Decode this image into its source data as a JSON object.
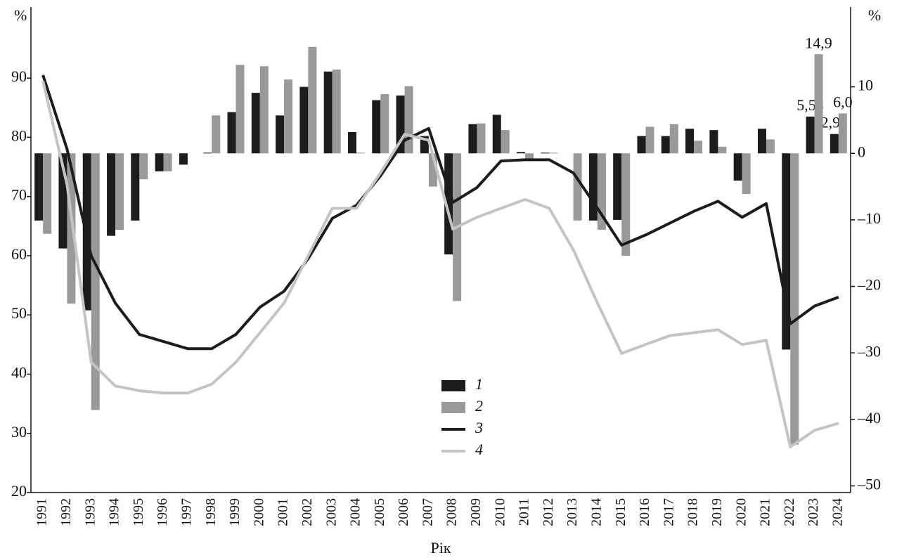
{
  "chart_data": {
    "type": "bar",
    "ylabel": "%",
    "y2label": "%",
    "xlabel": "Рік",
    "categories": [
      "1991",
      "1992",
      "1993",
      "1994",
      "1995",
      "1996",
      "1997",
      "1998",
      "1999",
      "2000",
      "2001",
      "2002",
      "2003",
      "2004",
      "2005",
      "2006",
      "2007",
      "2008",
      "2009",
      "2010",
      "2011",
      "2012",
      "2013",
      "2014",
      "2015",
      "2016",
      "2017",
      "2018",
      "2019",
      "2020",
      "2021",
      "2022",
      "2023",
      "2024"
    ],
    "ylim": [
      20,
      102
    ],
    "yticks": [
      20,
      30,
      40,
      50,
      60,
      70,
      80,
      90
    ],
    "y2lim": [
      -51,
      22
    ],
    "y2ticks": [
      10,
      0,
      {
        "value": -10,
        "label": "–10"
      },
      {
        "value": -20,
        "label": "–20"
      },
      {
        "value": -30,
        "label": "–30"
      },
      {
        "value": -40,
        "label": "–40"
      },
      {
        "value": -50,
        "label": "–50"
      }
    ],
    "series": [
      {
        "name": "1",
        "type": "bar",
        "axis": "y2",
        "color": "#1c1c1c",
        "values": [
          -10.1,
          -14.3,
          -23.6,
          -12.4,
          -10.1,
          -2.7,
          -1.7,
          0.1,
          6.2,
          9.1,
          5.7,
          10.0,
          12.3,
          3.2,
          8.0,
          8.7,
          2.6,
          -15.2,
          4.4,
          5.8,
          0.2,
          0.1,
          null,
          -10.1,
          -10.0,
          2.6,
          2.6,
          3.7,
          3.5,
          -4.1,
          3.7,
          -29.5,
          5.53,
          2.91
        ],
        "value_labels": [
          null,
          null,
          null,
          null,
          null,
          null,
          null,
          null,
          null,
          null,
          null,
          null,
          null,
          null,
          null,
          null,
          null,
          null,
          null,
          null,
          null,
          null,
          null,
          null,
          null,
          null,
          null,
          null,
          null,
          null,
          null,
          null,
          "5,53",
          "2,91"
        ]
      },
      {
        "name": "2",
        "type": "bar",
        "axis": "y2",
        "color": "#999999",
        "values": [
          -12.1,
          -22.6,
          -38.6,
          -11.5,
          -3.9,
          -2.7,
          null,
          5.7,
          13.3,
          13.1,
          11.1,
          16.0,
          12.6,
          0.1,
          8.9,
          10.1,
          -5.0,
          -22.2,
          4.5,
          3.5,
          -1.0,
          0.1,
          -10.1,
          -11.5,
          -15.4,
          4.0,
          4.4,
          1.9,
          1.0,
          -6.1,
          2.1,
          -43.8,
          14.9,
          6.0
        ],
        "value_labels": [
          null,
          null,
          null,
          null,
          null,
          null,
          null,
          null,
          null,
          null,
          null,
          null,
          null,
          null,
          null,
          null,
          null,
          null,
          null,
          null,
          null,
          null,
          null,
          null,
          null,
          null,
          null,
          null,
          null,
          null,
          null,
          null,
          "14,9",
          "6,0"
        ]
      },
      {
        "name": "3",
        "type": "line",
        "color": "#1c1c1c",
        "values": [
          90.5,
          78,
          60,
          52,
          46.7,
          45.5,
          44.3,
          44.3,
          46.7,
          51.3,
          54,
          59.5,
          66.3,
          68.5,
          73.5,
          79.5,
          81.5,
          69,
          71.5,
          76,
          76.2,
          76.2,
          74,
          68,
          61.8,
          63.5,
          65.5,
          67.5,
          69.2,
          66.5,
          68.8,
          48.5,
          51.5,
          53
        ]
      },
      {
        "name": "4",
        "type": "line",
        "color": "#c4c4c4",
        "values": [
          89.5,
          72,
          42,
          38,
          37.2,
          36.8,
          36.8,
          38.3,
          42,
          47,
          52,
          60,
          68,
          68,
          74,
          80.5,
          79.5,
          64.5,
          66.5,
          68,
          69.5,
          68,
          61,
          52,
          43.5,
          45,
          46.5,
          47,
          47.5,
          45,
          45.7,
          27.7,
          30.5,
          31.7
        ]
      }
    ]
  }
}
